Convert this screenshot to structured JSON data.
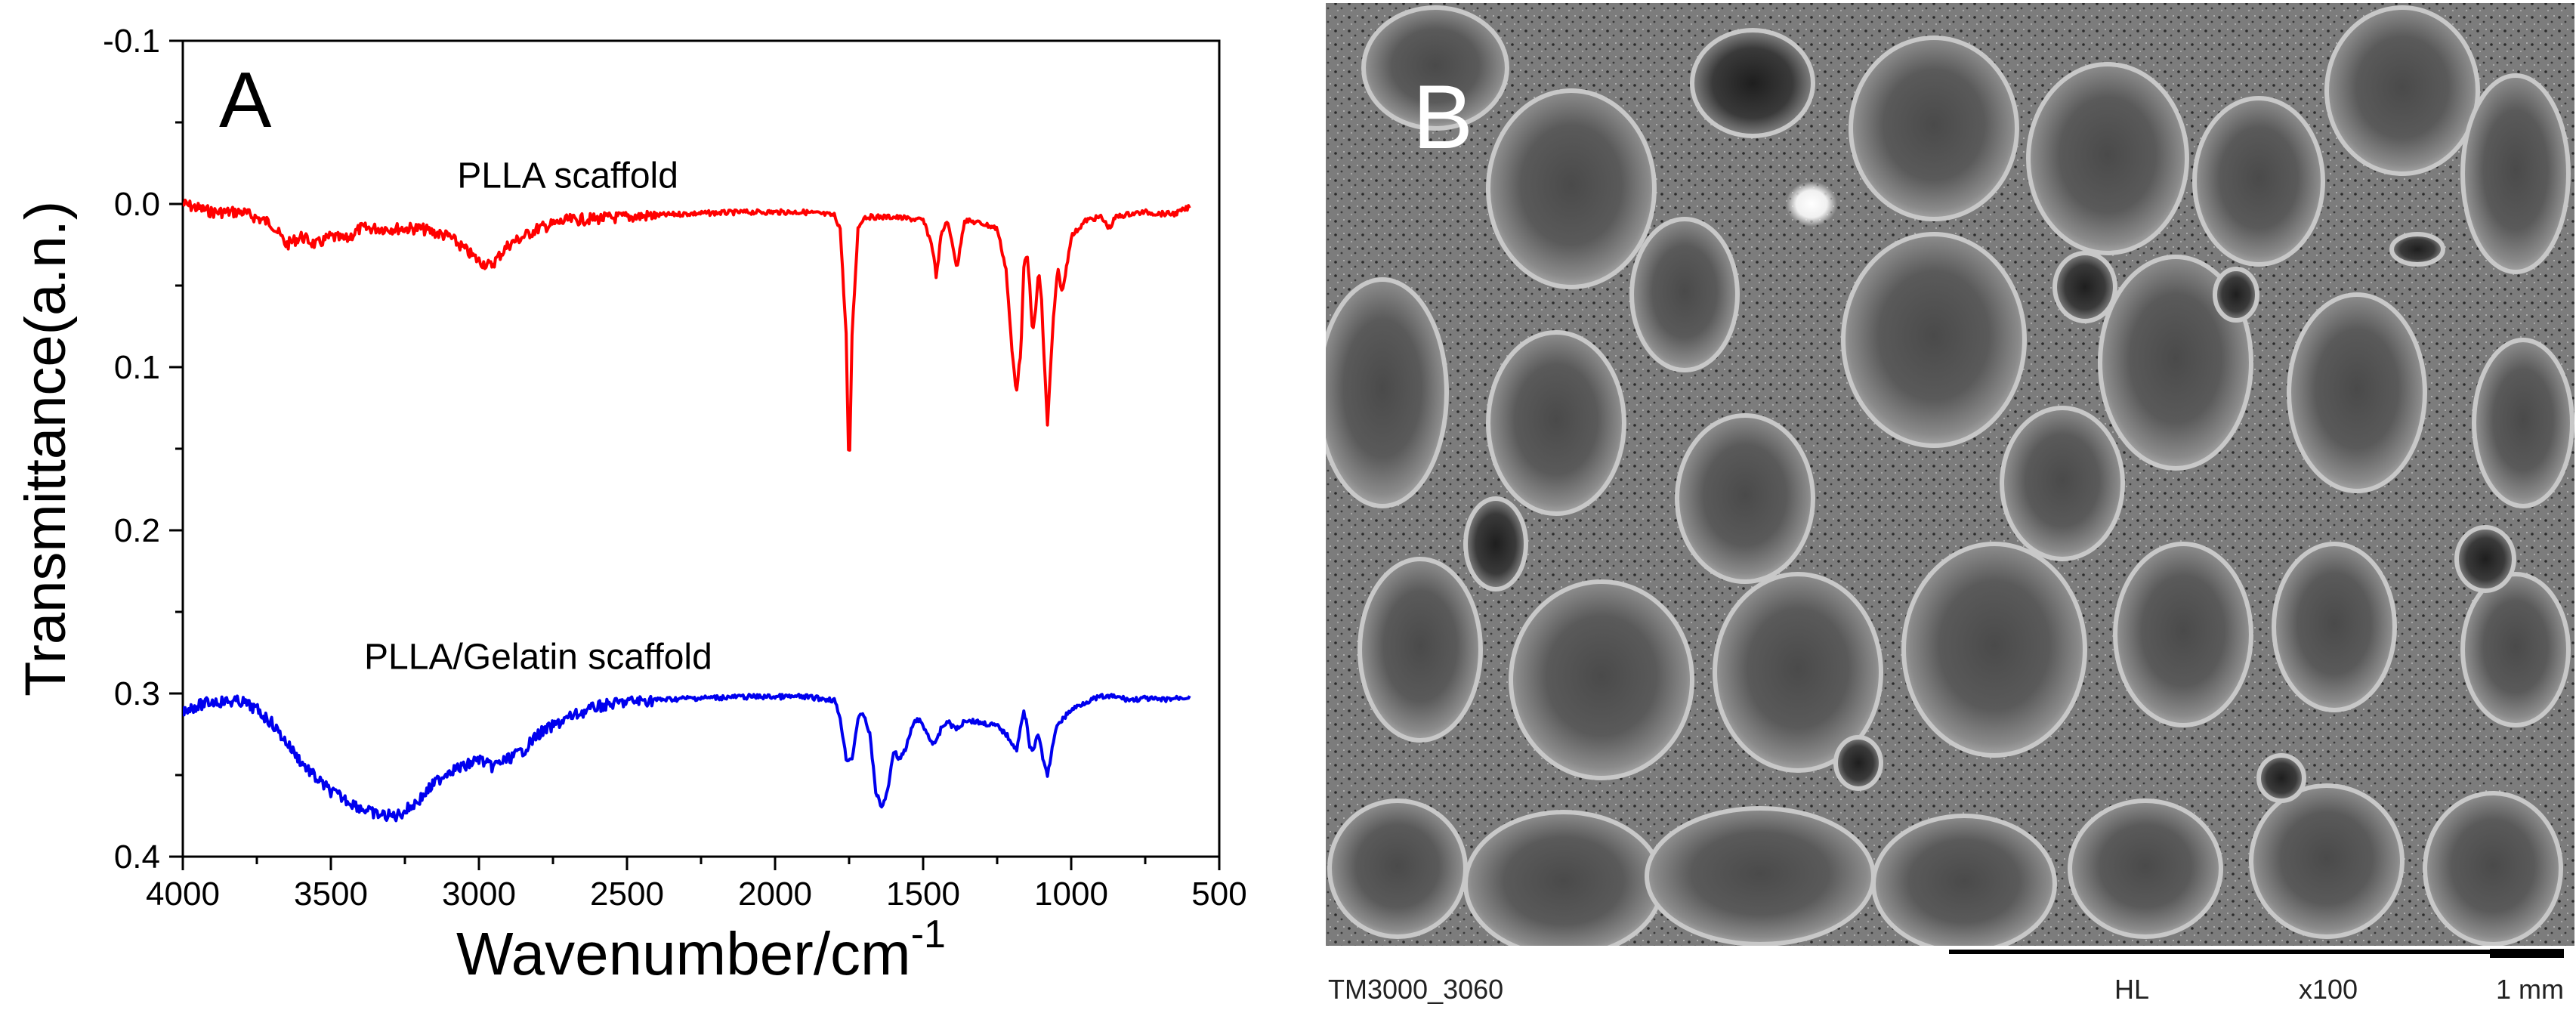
{
  "colors": {
    "series_red": "#ff0000",
    "series_blue": "#0000ee",
    "axis": "#000000"
  },
  "panel_a": {
    "panel_label": "A",
    "chart_data": {
      "type": "line",
      "title": "",
      "xlabel": "Wavenumber/cm",
      "xlabel_superscript": "-1",
      "ylabel": "Transmittance(a.n.)",
      "xlim": [
        4000,
        500
      ],
      "ylim": [
        -0.1,
        0.4
      ],
      "y_inverted": true,
      "x_ticks": [
        "4000",
        "3500",
        "3000",
        "2500",
        "2000",
        "1500",
        "1000",
        "500"
      ],
      "y_ticks": [
        "-0.1",
        "0.0",
        "0.1",
        "0.2",
        "0.3",
        "0.4"
      ],
      "grid": false,
      "series": [
        {
          "name": "PLLA scaffold",
          "color": "#ff0000",
          "x": [
            4000,
            3900,
            3800,
            3700,
            3650,
            3600,
            3550,
            3500,
            3450,
            3400,
            3300,
            3200,
            3100,
            3000,
            2960,
            2900,
            2800,
            2700,
            2500,
            2300,
            2100,
            1900,
            1800,
            1780,
            1760,
            1750,
            1740,
            1720,
            1700,
            1600,
            1500,
            1470,
            1455,
            1440,
            1420,
            1400,
            1385,
            1370,
            1360,
            1300,
            1250,
            1220,
            1200,
            1185,
            1170,
            1160,
            1150,
            1140,
            1130,
            1120,
            1110,
            1100,
            1090,
            1080,
            1060,
            1045,
            1030,
            1000,
            950,
            900,
            870,
            850,
            800,
            750,
            700,
            650,
            600
          ],
          "values": [
            0.0,
            0.005,
            0.005,
            0.012,
            0.025,
            0.02,
            0.025,
            0.02,
            0.022,
            0.015,
            0.015,
            0.015,
            0.02,
            0.035,
            0.038,
            0.025,
            0.015,
            0.01,
            0.008,
            0.006,
            0.005,
            0.005,
            0.007,
            0.015,
            0.08,
            0.17,
            0.08,
            0.015,
            0.008,
            0.008,
            0.01,
            0.025,
            0.045,
            0.02,
            0.01,
            0.025,
            0.04,
            0.02,
            0.01,
            0.012,
            0.015,
            0.04,
            0.09,
            0.115,
            0.09,
            0.04,
            0.03,
            0.05,
            0.08,
            0.065,
            0.04,
            0.06,
            0.1,
            0.135,
            0.07,
            0.04,
            0.055,
            0.02,
            0.01,
            0.008,
            0.015,
            0.008,
            0.006,
            0.005,
            0.006,
            0.006,
            0.002
          ]
        },
        {
          "name": "PLLA/Gelatin scaffold",
          "color": "#0000ee",
          "x": [
            4000,
            3900,
            3800,
            3750,
            3700,
            3650,
            3600,
            3550,
            3500,
            3450,
            3400,
            3350,
            3300,
            3280,
            3250,
            3200,
            3150,
            3100,
            3050,
            3000,
            2960,
            2900,
            2850,
            2800,
            2700,
            2600,
            2500,
            2300,
            2100,
            1900,
            1800,
            1780,
            1760,
            1740,
            1720,
            1700,
            1680,
            1660,
            1640,
            1620,
            1600,
            1580,
            1560,
            1540,
            1520,
            1500,
            1470,
            1455,
            1440,
            1420,
            1400,
            1380,
            1360,
            1300,
            1250,
            1220,
            1200,
            1185,
            1170,
            1160,
            1150,
            1140,
            1130,
            1120,
            1110,
            1100,
            1090,
            1080,
            1060,
            1045,
            1030,
            1000,
            950,
            900,
            850,
            800,
            750,
            700,
            650,
            600
          ],
          "values": [
            0.31,
            0.305,
            0.305,
            0.31,
            0.318,
            0.33,
            0.342,
            0.352,
            0.36,
            0.365,
            0.37,
            0.374,
            0.375,
            0.375,
            0.372,
            0.365,
            0.355,
            0.347,
            0.345,
            0.34,
            0.345,
            0.34,
            0.335,
            0.325,
            0.315,
            0.308,
            0.305,
            0.303,
            0.302,
            0.302,
            0.304,
            0.315,
            0.34,
            0.34,
            0.315,
            0.313,
            0.325,
            0.36,
            0.37,
            0.36,
            0.335,
            0.34,
            0.335,
            0.322,
            0.315,
            0.32,
            0.33,
            0.33,
            0.322,
            0.317,
            0.32,
            0.322,
            0.316,
            0.318,
            0.32,
            0.325,
            0.33,
            0.335,
            0.32,
            0.312,
            0.318,
            0.332,
            0.335,
            0.33,
            0.325,
            0.335,
            0.345,
            0.35,
            0.33,
            0.318,
            0.316,
            0.31,
            0.305,
            0.302,
            0.302,
            0.304,
            0.303,
            0.304,
            0.303,
            0.302
          ]
        }
      ],
      "annotations": [
        {
          "text": "PLLA scaffold",
          "x": 2700,
          "y": -0.01
        },
        {
          "text": "PLLA/Gelatin scaffold",
          "x": 2800,
          "y": 0.285
        }
      ]
    }
  },
  "panel_b": {
    "panel_label": "B",
    "scale_bar": {
      "instrument": "TM3000_3060",
      "mode": "HL",
      "magnification": "x100",
      "length_label": "1 mm"
    }
  }
}
